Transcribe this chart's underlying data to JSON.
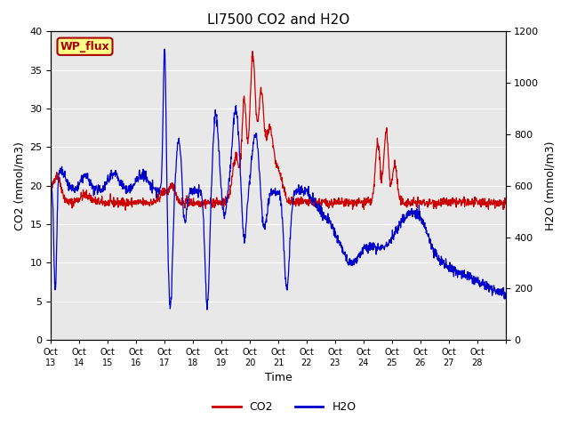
{
  "title": "LI7500 CO2 and H2O",
  "xlabel": "Time",
  "ylabel_left": "CO2 (mmol/m3)",
  "ylabel_right": "H2O (mmol/m3)",
  "ylim_left": [
    0,
    40
  ],
  "ylim_right": [
    0,
    1200
  ],
  "yticks_left": [
    0,
    5,
    10,
    15,
    20,
    25,
    30,
    35,
    40
  ],
  "yticks_right": [
    0,
    200,
    400,
    600,
    800,
    1000,
    1200
  ],
  "co2_color": "#cc0000",
  "h2o_color": "#0000cc",
  "bg_color": "#e8e8e8",
  "grid_color": "#ffffff",
  "wp_flux_bg": "#ffff88",
  "wp_flux_border": "#aa0000",
  "wp_flux_text": "#aa0000",
  "legend_co2_color": "#cc0000",
  "legend_h2o_color": "#0000cc",
  "x_tick_labels": [
    "Oct 13",
    "Oct 14",
    "Oct 15",
    "Oct 16",
    "Oct 17",
    "Oct 18",
    "Oct 19",
    "Oct 20",
    "Oct 21",
    "Oct 22",
    "Oct 23",
    "Oct 24",
    "Oct 25",
    "Oct 26",
    "Oct 27",
    "Oct 28"
  ],
  "n_days": 16,
  "seed": 42
}
